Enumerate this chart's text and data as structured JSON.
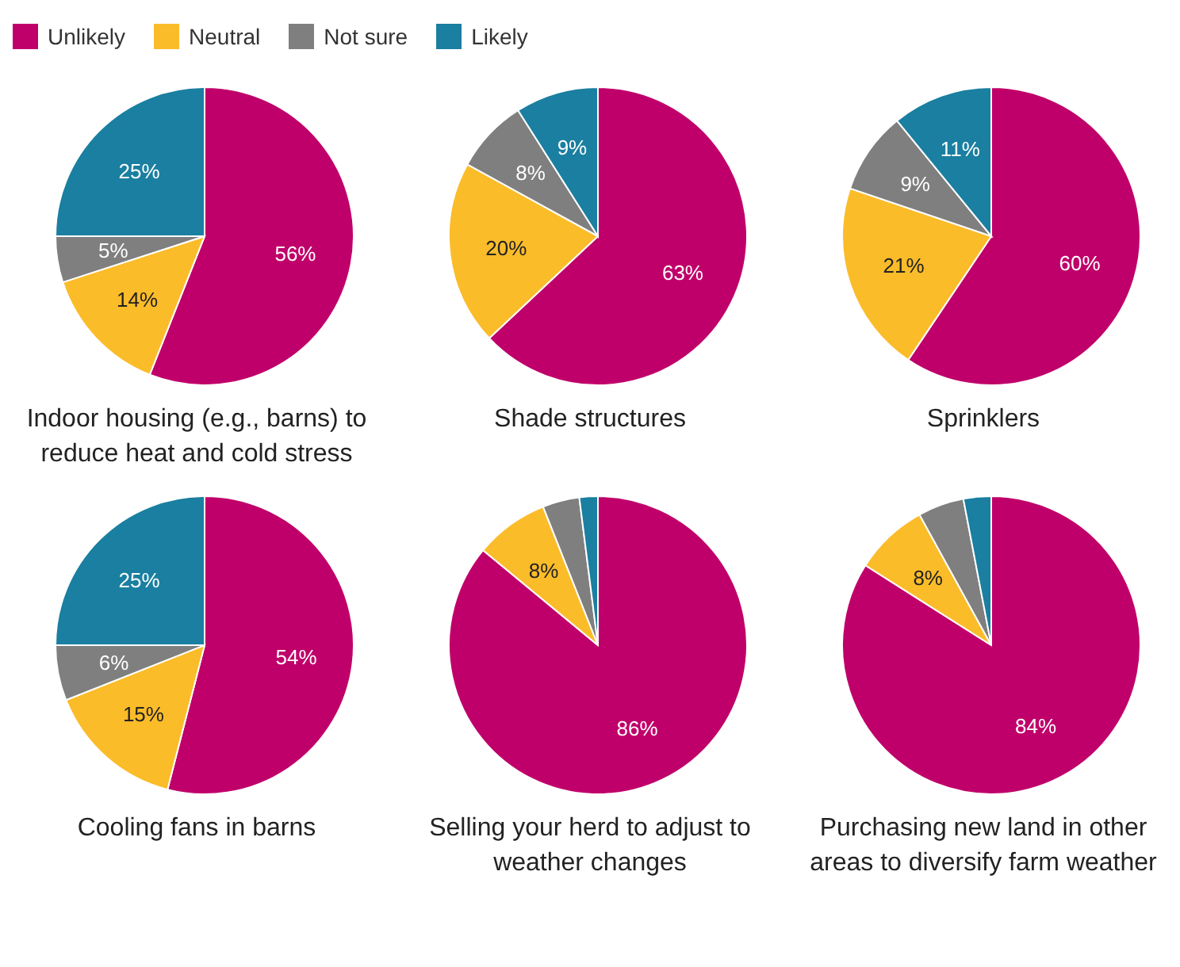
{
  "chart_data": [
    {
      "type": "pie",
      "title": "Indoor housing (e.g., barns) to reduce heat and cold stress",
      "legend": "top",
      "categories": [
        "Unlikely",
        "Neutral",
        "Not sure",
        "Likely"
      ],
      "values": [
        56,
        14,
        5,
        25
      ],
      "value_labels": [
        "56%",
        "14%",
        "5%",
        "25%"
      ],
      "colors": [
        "#c0006a",
        "#fbbc2a",
        "#7f7f7f",
        "#1a7fa0"
      ]
    },
    {
      "type": "pie",
      "title": "Shade structures",
      "categories": [
        null,
        null,
        null,
        null
      ],
      "values": [
        63,
        20,
        8,
        9
      ],
      "value_labels": [
        "63%",
        "20%",
        "8%",
        "9%"
      ],
      "colors": [
        "#c0006a",
        "#fbbc2a",
        "#7f7f7f",
        "#1a7fa0"
      ]
    },
    {
      "type": "pie",
      "title": "Sprinklers",
      "categories": [
        null,
        null,
        null,
        null
      ],
      "values": [
        60,
        21,
        9,
        11
      ],
      "value_labels": [
        "60%",
        "21%",
        "9%",
        "11%"
      ],
      "colors": [
        "#c0006a",
        "#fbbc2a",
        "#7f7f7f",
        "#1a7fa0"
      ]
    },
    {
      "type": "pie",
      "title": "Cooling fans in barns",
      "categories": [
        null,
        null,
        null,
        null
      ],
      "values": [
        54,
        15,
        6,
        25
      ],
      "value_labels": [
        "54%",
        "15%",
        "6%",
        "25%"
      ],
      "colors": [
        "#c0006a",
        "#fbbc2a",
        "#7f7f7f",
        "#1a7fa0"
      ]
    },
    {
      "type": "pie",
      "title": "Selling your herd to adjust to weather changes",
      "categories": [
        null,
        null,
        null,
        null
      ],
      "values": [
        86,
        8,
        4,
        2
      ],
      "value_labels": [
        "86%",
        "8%",
        null,
        null
      ],
      "colors": [
        "#c0006a",
        "#fbbc2a",
        "#7f7f7f",
        "#1a7fa0"
      ]
    },
    {
      "type": "pie",
      "title": "Purchasing new land in other areas to diversify farm weather",
      "categories": [
        null,
        null,
        null,
        null
      ],
      "values": [
        84,
        8,
        5,
        3
      ],
      "value_labels": [
        "84%",
        "8%",
        null,
        null
      ],
      "colors": [
        "#c0006a",
        "#fbbc2a",
        "#7f7f7f",
        "#1a7fa0"
      ]
    }
  ]
}
